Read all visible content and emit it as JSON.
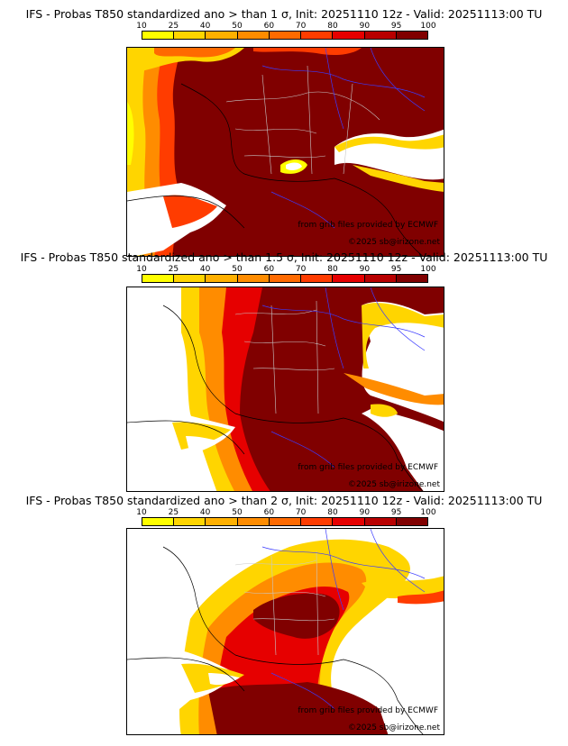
{
  "colorbar": {
    "ticks": [
      "10",
      "25",
      "40",
      "50",
      "60",
      "70",
      "80",
      "90",
      "95",
      "100"
    ],
    "colors": [
      "#ffff00",
      "#ffd500",
      "#ffb000",
      "#ff8c00",
      "#ff6a00",
      "#ff3c00",
      "#e60000",
      "#b80000",
      "#800000"
    ]
  },
  "maps": [
    {
      "title": "IFS - Probas T850  standardized ano > than 1 σ, Init: 20251110 12z - Valid: 20251113:00 TU",
      "credit_source": "from grib files provided by ECMWF",
      "credit_site": "©2025 sb@irizone.net"
    },
    {
      "title": "IFS - Probas T850  standardized ano > than 1.5 σ, Init: 20251110 12z - Valid: 20251113:00 TU",
      "credit_source": "from grib files provided by ECMWF",
      "credit_site": "©2025 sb@irizone.net"
    },
    {
      "title": "IFS - Probas T850  standardized ano > than 2 σ, Init: 20251110 12z - Valid: 20251113:00 TU",
      "credit_source": "from grib files provided by ECMWF",
      "credit_site": "©2025 sb@irizone.net"
    }
  ]
}
